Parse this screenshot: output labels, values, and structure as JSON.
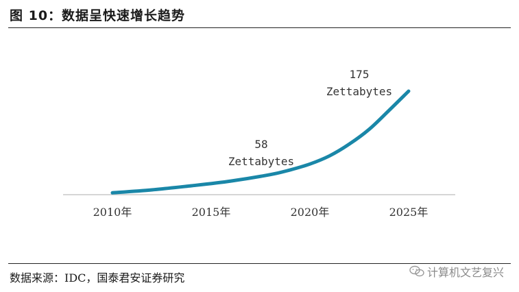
{
  "header": {
    "title": "图 10：数据呈快速增长趋势"
  },
  "footer": {
    "source": "数据来源：IDC，国泰君安证券研究",
    "watermark": "计算机文艺复兴"
  },
  "chart_data": {
    "type": "line",
    "title": "",
    "xlabel": "",
    "ylabel": "",
    "x_ticks": [
      "2010年",
      "2015年",
      "2020年",
      "2025年"
    ],
    "xlim": [
      2010,
      2025
    ],
    "ylim": [
      0,
      175
    ],
    "grid": false,
    "line_color": "#1a87a8",
    "series": [
      {
        "points": [
          {
            "x": 2010,
            "y": 2
          },
          {
            "x": 2012,
            "y": 7
          },
          {
            "x": 2014,
            "y": 14
          },
          {
            "x": 2016,
            "y": 22
          },
          {
            "x": 2018,
            "y": 33
          },
          {
            "x": 2019,
            "y": 41
          },
          {
            "x": 2020,
            "y": 51
          },
          {
            "x": 2021,
            "y": 65
          },
          {
            "x": 2022,
            "y": 85
          },
          {
            "x": 2023,
            "y": 110
          },
          {
            "x": 2024,
            "y": 142
          },
          {
            "x": 2025,
            "y": 175
          }
        ]
      }
    ],
    "annotations": [
      {
        "x": 2018.5,
        "y": 58,
        "value": "58",
        "unit": "Zettabytes"
      },
      {
        "x": 2024.1,
        "y": 175,
        "value": "175",
        "unit": "Zettabytes"
      }
    ]
  }
}
